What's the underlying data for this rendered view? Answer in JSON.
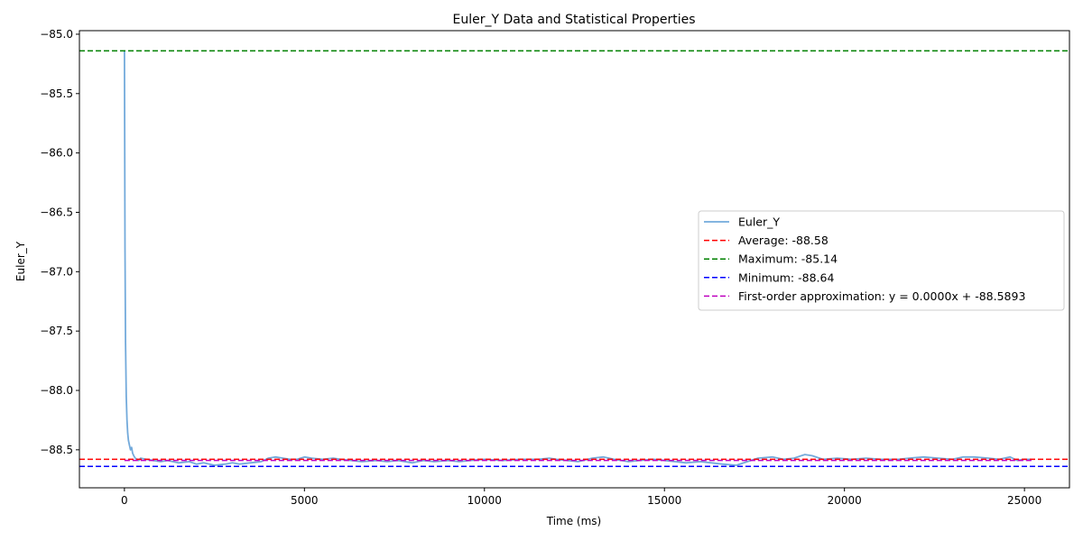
{
  "chart_data": {
    "type": "line",
    "title": "Euler_Y Data and Statistical Properties",
    "xlabel": "Time (ms)",
    "ylabel": "Euler_Y",
    "xlim": [
      -1250,
      26250
    ],
    "ylim": [
      -88.82,
      -84.97
    ],
    "xticks": [
      0,
      5000,
      10000,
      15000,
      20000,
      25000
    ],
    "yticks": [
      -88.5,
      -88.0,
      -87.5,
      -87.0,
      -86.5,
      -86.0,
      -85.5,
      -85.0
    ],
    "grid": false,
    "legend_position": "center-right",
    "series": [
      {
        "name": "Euler_Y",
        "color": "#5b9bd5",
        "style": "solid",
        "points": [
          [
            0,
            -85.14
          ],
          [
            15,
            -86.8
          ],
          [
            30,
            -87.6
          ],
          [
            50,
            -88.05
          ],
          [
            70,
            -88.25
          ],
          [
            90,
            -88.36
          ],
          [
            110,
            -88.42
          ],
          [
            140,
            -88.46
          ],
          [
            170,
            -88.5
          ],
          [
            200,
            -88.48
          ],
          [
            230,
            -88.53
          ],
          [
            260,
            -88.55
          ],
          [
            300,
            -88.57
          ],
          [
            350,
            -88.58
          ],
          [
            400,
            -88.59
          ],
          [
            450,
            -88.57
          ],
          [
            600,
            -88.58
          ],
          [
            800,
            -88.59
          ],
          [
            1000,
            -88.6
          ],
          [
            1200,
            -88.59
          ],
          [
            1500,
            -88.61
          ],
          [
            1800,
            -88.6
          ],
          [
            2000,
            -88.62
          ],
          [
            2200,
            -88.61
          ],
          [
            2500,
            -88.63
          ],
          [
            2800,
            -88.62
          ],
          [
            3000,
            -88.61
          ],
          [
            3200,
            -88.62
          ],
          [
            3500,
            -88.61
          ],
          [
            3800,
            -88.6
          ],
          [
            4000,
            -88.57
          ],
          [
            4200,
            -88.56
          ],
          [
            4400,
            -88.57
          ],
          [
            4600,
            -88.58
          ],
          [
            4800,
            -88.58
          ],
          [
            5000,
            -88.56
          ],
          [
            5200,
            -88.57
          ],
          [
            5500,
            -88.58
          ],
          [
            5800,
            -88.57
          ],
          [
            6000,
            -88.58
          ],
          [
            6300,
            -88.59
          ],
          [
            6600,
            -88.6
          ],
          [
            7000,
            -88.59
          ],
          [
            7300,
            -88.6
          ],
          [
            7600,
            -88.59
          ],
          [
            8000,
            -88.61
          ],
          [
            8300,
            -88.59
          ],
          [
            8600,
            -88.6
          ],
          [
            9000,
            -88.59
          ],
          [
            9300,
            -88.6
          ],
          [
            9600,
            -88.59
          ],
          [
            10000,
            -88.58
          ],
          [
            10500,
            -88.59
          ],
          [
            11000,
            -88.58
          ],
          [
            11500,
            -88.58
          ],
          [
            11800,
            -88.57
          ],
          [
            12000,
            -88.58
          ],
          [
            12300,
            -88.59
          ],
          [
            12600,
            -88.6
          ],
          [
            13000,
            -88.57
          ],
          [
            13300,
            -88.56
          ],
          [
            13600,
            -88.58
          ],
          [
            14000,
            -88.6
          ],
          [
            14300,
            -88.59
          ],
          [
            14700,
            -88.58
          ],
          [
            15000,
            -88.59
          ],
          [
            15300,
            -88.6
          ],
          [
            15600,
            -88.61
          ],
          [
            16000,
            -88.6
          ],
          [
            16300,
            -88.61
          ],
          [
            16600,
            -88.62
          ],
          [
            17000,
            -88.63
          ],
          [
            17300,
            -88.6
          ],
          [
            17600,
            -88.57
          ],
          [
            18000,
            -88.56
          ],
          [
            18300,
            -88.58
          ],
          [
            18600,
            -88.57
          ],
          [
            18900,
            -88.54
          ],
          [
            19100,
            -88.55
          ],
          [
            19400,
            -88.58
          ],
          [
            19800,
            -88.57
          ],
          [
            20200,
            -88.58
          ],
          [
            20600,
            -88.57
          ],
          [
            21000,
            -88.58
          ],
          [
            21500,
            -88.58
          ],
          [
            21800,
            -88.57
          ],
          [
            22200,
            -88.56
          ],
          [
            22600,
            -88.57
          ],
          [
            23000,
            -88.58
          ],
          [
            23300,
            -88.56
          ],
          [
            23600,
            -88.56
          ],
          [
            24000,
            -88.57
          ],
          [
            24300,
            -88.58
          ],
          [
            24600,
            -88.56
          ],
          [
            24800,
            -88.59
          ],
          [
            25000,
            -88.58
          ],
          [
            25200,
            -88.58
          ]
        ]
      },
      {
        "name": "Average: -88.58",
        "color": "#ff0000",
        "style": "dashed",
        "y": -88.58
      },
      {
        "name": "Maximum: -85.14",
        "color": "#008000",
        "style": "dashed",
        "y": -85.14
      },
      {
        "name": "Minimum: -88.64",
        "color": "#0000ff",
        "style": "dashed",
        "y": -88.64
      },
      {
        "name": "First-order approximation: y = 0.0000x + -88.5893",
        "color": "#bf00bf",
        "style": "dashed",
        "slope": 0.0,
        "intercept": -88.5893
      }
    ]
  }
}
